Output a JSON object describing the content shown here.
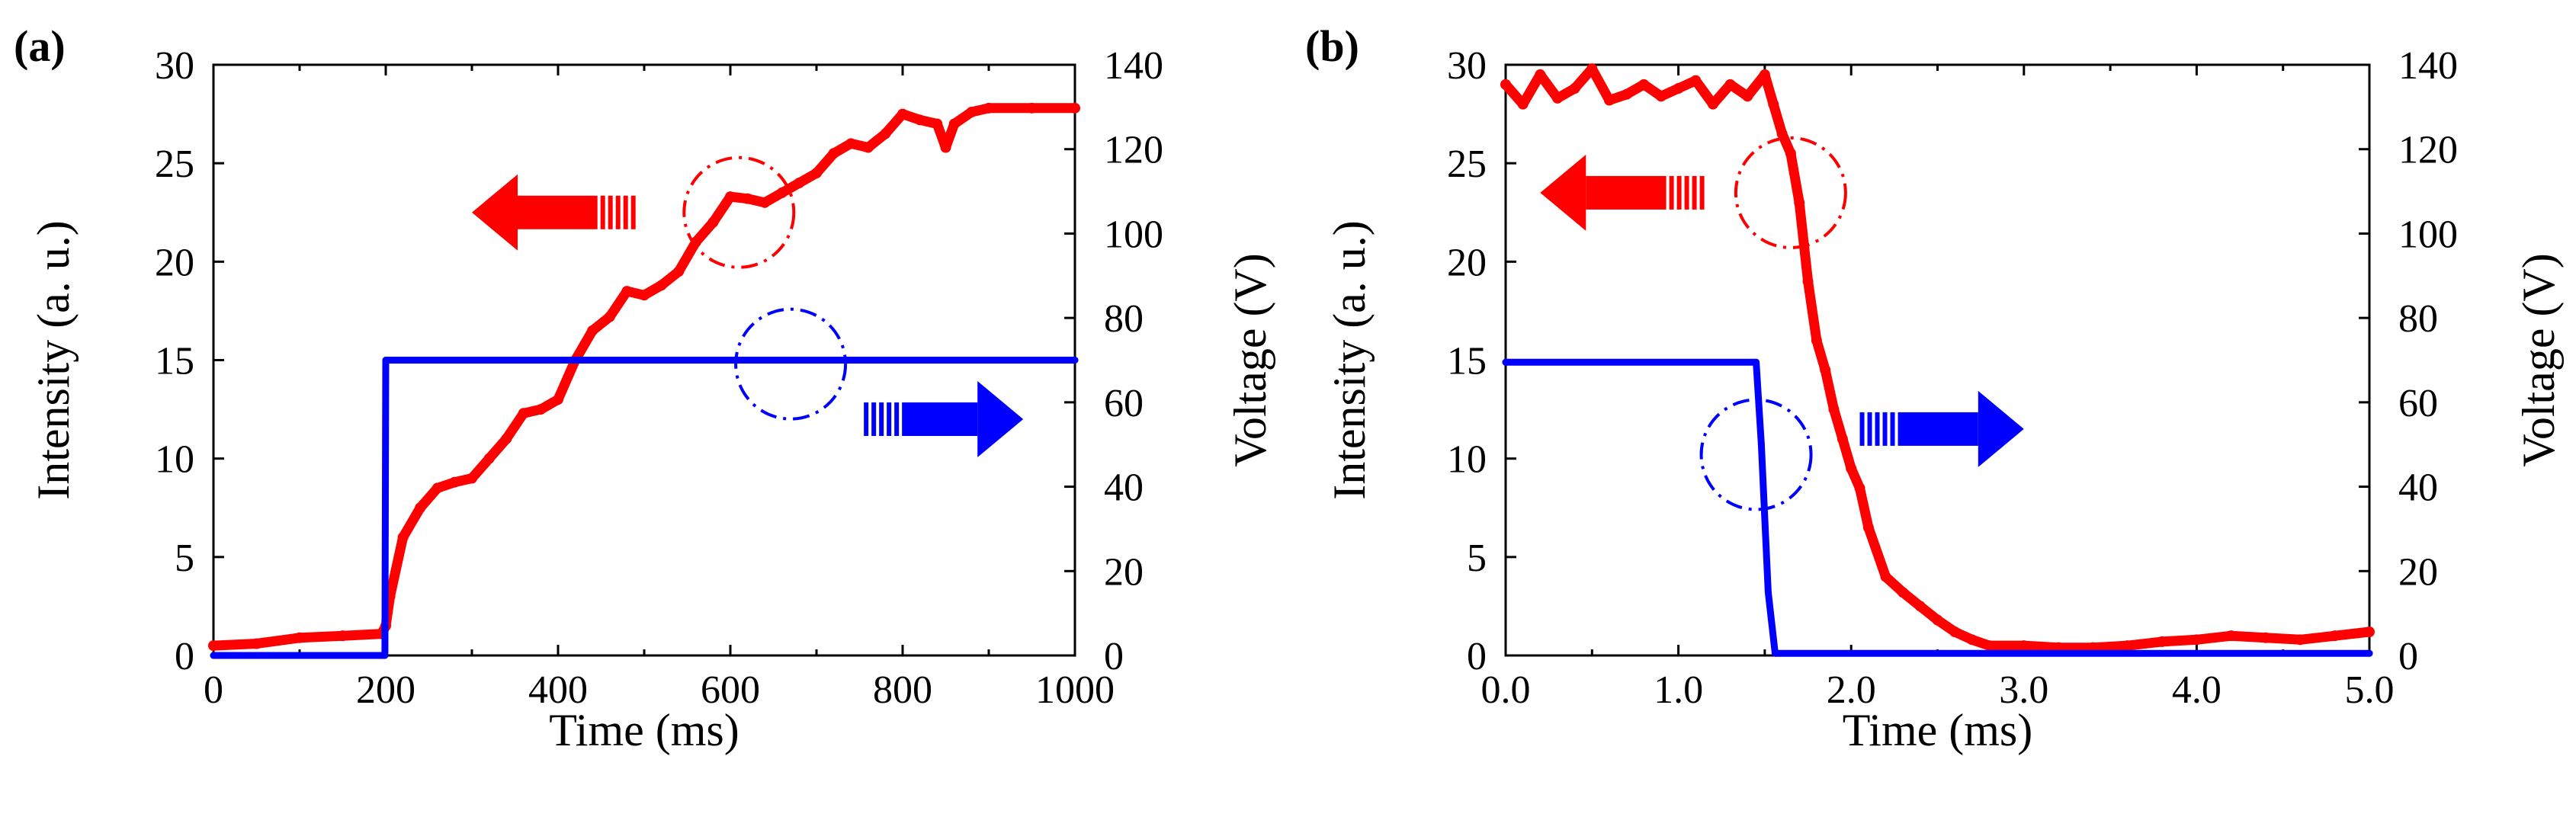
{
  "chart_data": [
    {
      "panel_label": "(a)",
      "type": "line",
      "xlabel": "Time (ms)",
      "ylabel_left": "Intensity (a. u.)",
      "ylabel_right": "Voltage (V)",
      "xlim": [
        0,
        1000
      ],
      "ylim_left": [
        0,
        30
      ],
      "ylim_right": [
        0,
        140
      ],
      "xticks": [
        0,
        200,
        400,
        600,
        800,
        1000
      ],
      "xtick_labels": [
        "0",
        "200",
        "400",
        "600",
        "800",
        "1000"
      ],
      "yticks_left": [
        0,
        5,
        10,
        15,
        20,
        25,
        30
      ],
      "ytick_labels_left": [
        "0",
        "5",
        "10",
        "15",
        "20",
        "25",
        "30"
      ],
      "yticks_right": [
        0,
        20,
        40,
        60,
        80,
        100,
        120,
        140
      ],
      "ytick_labels_right": [
        "0",
        "20",
        "40",
        "60",
        "80",
        "100",
        "120",
        "140"
      ],
      "series": [
        {
          "name": "Intensity",
          "axis": "left",
          "color": "#ff0000",
          "x": [
            0,
            50,
            100,
            150,
            195,
            200,
            205,
            220,
            240,
            260,
            280,
            300,
            320,
            340,
            360,
            380,
            400,
            420,
            440,
            460,
            480,
            500,
            520,
            540,
            560,
            580,
            600,
            620,
            640,
            660,
            680,
            700,
            720,
            740,
            760,
            780,
            800,
            820,
            840,
            850,
            860,
            880,
            900,
            950,
            1000
          ],
          "y": [
            0.5,
            0.6,
            0.9,
            1.0,
            1.1,
            1.5,
            3.0,
            6.0,
            7.5,
            8.5,
            8.8,
            9.0,
            10.0,
            11.0,
            12.3,
            12.5,
            13.0,
            15.0,
            16.5,
            17.2,
            18.5,
            18.3,
            18.8,
            19.5,
            21.0,
            22.0,
            23.3,
            23.2,
            23.0,
            23.5,
            24.0,
            24.5,
            25.5,
            26.0,
            25.8,
            26.5,
            27.5,
            27.2,
            27.0,
            25.8,
            27.0,
            27.6,
            27.8,
            27.8,
            27.8
          ]
        },
        {
          "name": "Voltage",
          "axis": "right",
          "color": "#0000ff",
          "x": [
            0,
            199,
            200,
            1000
          ],
          "y": [
            0,
            0,
            70,
            70
          ]
        }
      ],
      "annotations": [
        {
          "kind": "dash-dot circle",
          "color": "#ff0000",
          "x": 610,
          "y_left": 22.5
        },
        {
          "kind": "dash-dot circle",
          "color": "#0000ff",
          "x": 670,
          "y_left": 14.8
        },
        {
          "kind": "arrow",
          "direction": "left",
          "color": "#ff0000",
          "x_from": 490,
          "x_to": 300,
          "y_left": 22.5
        },
        {
          "kind": "arrow",
          "direction": "right",
          "color": "#0000ff",
          "x_from": 755,
          "x_to": 940,
          "y_left": 12.0
        }
      ]
    },
    {
      "panel_label": "(b)",
      "type": "line",
      "xlabel": "Time (ms)",
      "ylabel_left": "Intensity (a. u.)",
      "ylabel_right": "Voltage (V)",
      "xlim": [
        0,
        5
      ],
      "ylim_left": [
        0,
        30
      ],
      "ylim_right": [
        0,
        140
      ],
      "xticks": [
        0,
        1,
        2,
        3,
        4,
        5
      ],
      "xtick_labels": [
        "0.0",
        "1.0",
        "2.0",
        "3.0",
        "4.0",
        "5.0"
      ],
      "yticks_left": [
        0,
        5,
        10,
        15,
        20,
        25,
        30
      ],
      "ytick_labels_left": [
        "0",
        "5",
        "10",
        "15",
        "20",
        "25",
        "30"
      ],
      "yticks_right": [
        0,
        20,
        40,
        60,
        80,
        100,
        120,
        140
      ],
      "ytick_labels_right": [
        "0",
        "20",
        "40",
        "60",
        "80",
        "100",
        "120",
        "140"
      ],
      "series": [
        {
          "name": "Intensity",
          "axis": "left",
          "color": "#ff0000",
          "x": [
            0.0,
            0.1,
            0.2,
            0.3,
            0.4,
            0.5,
            0.6,
            0.7,
            0.8,
            0.9,
            1.0,
            1.1,
            1.2,
            1.3,
            1.4,
            1.5,
            1.55,
            1.6,
            1.65,
            1.7,
            1.75,
            1.8,
            1.85,
            1.9,
            1.95,
            2.0,
            2.05,
            2.1,
            2.2,
            2.3,
            2.4,
            2.5,
            2.6,
            2.7,
            2.8,
            3.0,
            3.2,
            3.4,
            3.6,
            3.8,
            4.0,
            4.2,
            4.4,
            4.6,
            4.8,
            5.0
          ],
          "y": [
            29.0,
            28.0,
            29.5,
            28.3,
            28.8,
            29.8,
            28.2,
            28.5,
            29.0,
            28.4,
            28.8,
            29.2,
            28.0,
            29.0,
            28.4,
            29.5,
            28.0,
            26.5,
            25.5,
            23.0,
            19.0,
            16.0,
            14.5,
            12.5,
            11.0,
            9.5,
            8.5,
            6.5,
            4.0,
            3.2,
            2.5,
            1.8,
            1.2,
            0.8,
            0.5,
            0.5,
            0.4,
            0.4,
            0.5,
            0.7,
            0.8,
            1.0,
            0.9,
            0.8,
            1.0,
            1.2
          ]
        },
        {
          "name": "Voltage",
          "axis": "right",
          "color": "#0000ff",
          "x": [
            0.0,
            1.45,
            1.48,
            1.52,
            1.56,
            5.0
          ],
          "y": [
            69.5,
            69.5,
            50,
            15,
            0.5,
            0.5
          ]
        }
      ],
      "annotations": [
        {
          "kind": "dash-dot circle",
          "color": "#ff0000",
          "x": 1.65,
          "y_left": 23.5
        },
        {
          "kind": "dash-dot circle",
          "color": "#0000ff",
          "x": 1.45,
          "y_left": 10.2
        },
        {
          "kind": "arrow",
          "direction": "left",
          "color": "#ff0000",
          "x_from": 1.15,
          "x_to": 0.2,
          "y_left": 23.5
        },
        {
          "kind": "arrow",
          "direction": "right",
          "color": "#0000ff",
          "x_from": 2.05,
          "x_to": 3.0,
          "y_left": 11.5
        }
      ]
    }
  ]
}
